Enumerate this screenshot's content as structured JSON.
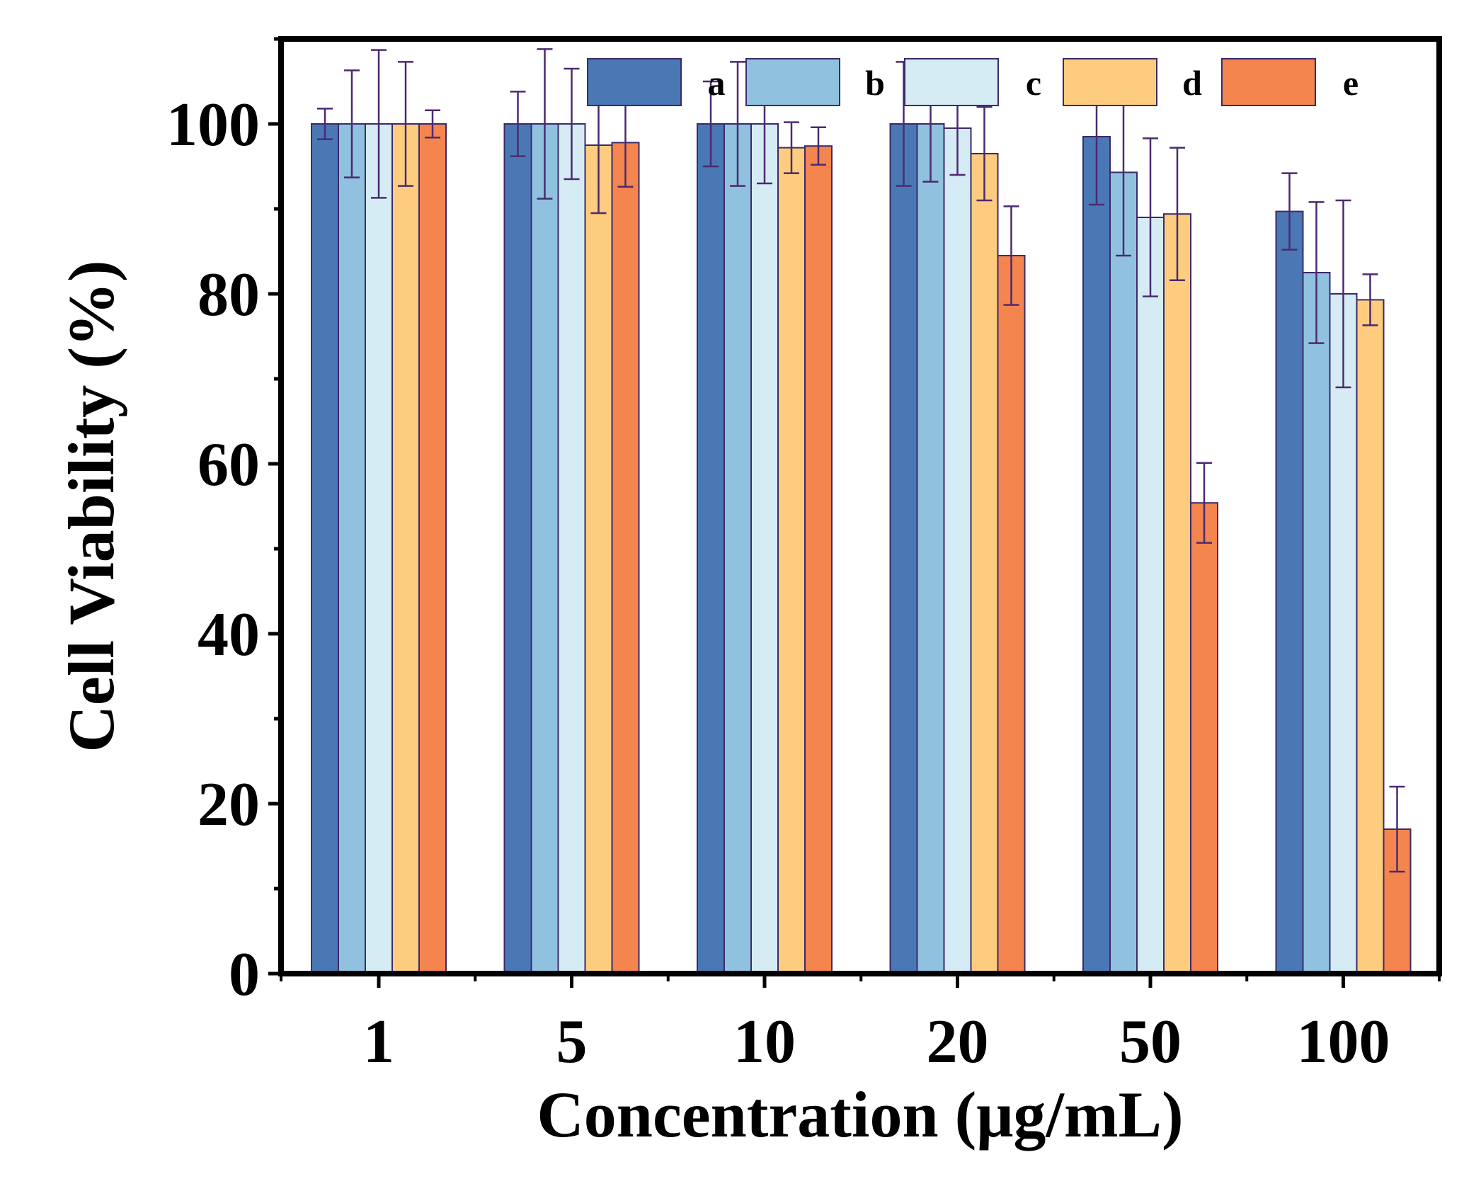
{
  "chart_data": {
    "type": "bar",
    "title": "",
    "xlabel": "Concentration (μg/mL)",
    "ylabel": "Cell Viability (%)",
    "categories": [
      "1",
      "5",
      "10",
      "20",
      "50",
      "100"
    ],
    "ylim": [
      0,
      110
    ],
    "yticks": [
      0,
      20,
      40,
      60,
      80,
      100
    ],
    "y_minor_step": 10,
    "legend_position": "top-right",
    "grid": false,
    "series": [
      {
        "name": "a",
        "color": "#4a78b5",
        "values": [
          100,
          100,
          100,
          100,
          98.5,
          89.7
        ],
        "errors": [
          1.8,
          3.8,
          5.0,
          7.3,
          8.0,
          4.5
        ]
      },
      {
        "name": "b",
        "color": "#90c2e0",
        "values": [
          100,
          100,
          100,
          100,
          94.3,
          82.5
        ],
        "errors": [
          6.3,
          8.8,
          7.3,
          6.8,
          9.8,
          8.3
        ]
      },
      {
        "name": "c",
        "color": "#d5ecf4",
        "values": [
          100,
          100,
          100,
          99.5,
          89.0,
          80.0
        ],
        "errors": [
          8.7,
          6.5,
          7.0,
          5.5,
          9.3,
          11.0
        ]
      },
      {
        "name": "d",
        "color": "#fdcc7e",
        "values": [
          100,
          97.5,
          97.2,
          96.5,
          89.4,
          79.3
        ],
        "errors": [
          7.3,
          8.0,
          3.0,
          5.5,
          7.8,
          3.0
        ]
      },
      {
        "name": "e",
        "color": "#f4854e",
        "values": [
          100,
          97.8,
          97.4,
          84.5,
          55.4,
          17.0
        ],
        "errors": [
          1.6,
          5.2,
          2.2,
          5.8,
          4.7,
          5.0
        ]
      }
    ]
  }
}
